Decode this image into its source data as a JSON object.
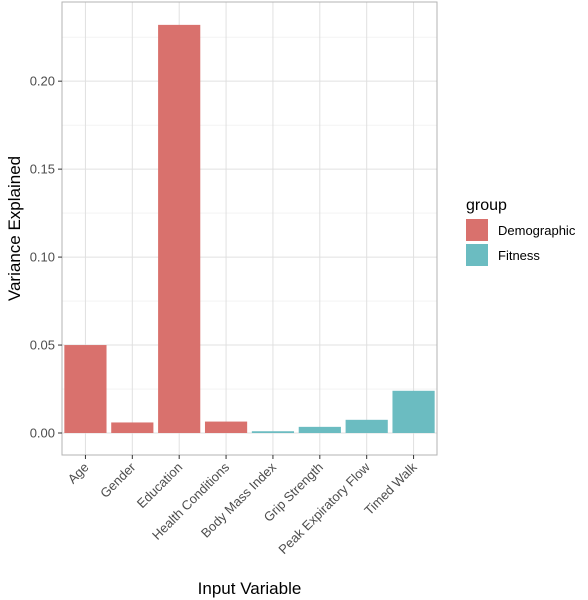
{
  "chart_data": {
    "type": "bar",
    "xlabel": "Input Variable",
    "ylabel": "Variance Explained",
    "ylim": [
      -0.0125,
      0.245
    ],
    "yticks": [
      0.0,
      0.05,
      0.1,
      0.15,
      0.2
    ],
    "ytick_labels": [
      "0.00",
      "0.05",
      "0.10",
      "0.15",
      "0.20"
    ],
    "grid": true,
    "legend_position": "right",
    "legend_title": "group",
    "groups": [
      {
        "name": "Demographic",
        "color": "#d9716d"
      },
      {
        "name": "Fitness",
        "color": "#6bbcc1"
      }
    ],
    "categories": [
      "Age",
      "Gender",
      "Education",
      "Health Conditions",
      "Body Mass Index",
      "Grip Strength",
      "Peak Expiratory Flow",
      "Timed Walk"
    ],
    "values": [
      0.05,
      0.006,
      0.232,
      0.0065,
      0.001,
      0.0035,
      0.0075,
      0.024
    ],
    "category_group": [
      "Demographic",
      "Demographic",
      "Demographic",
      "Demographic",
      "Fitness",
      "Fitness",
      "Fitness",
      "Fitness"
    ]
  }
}
